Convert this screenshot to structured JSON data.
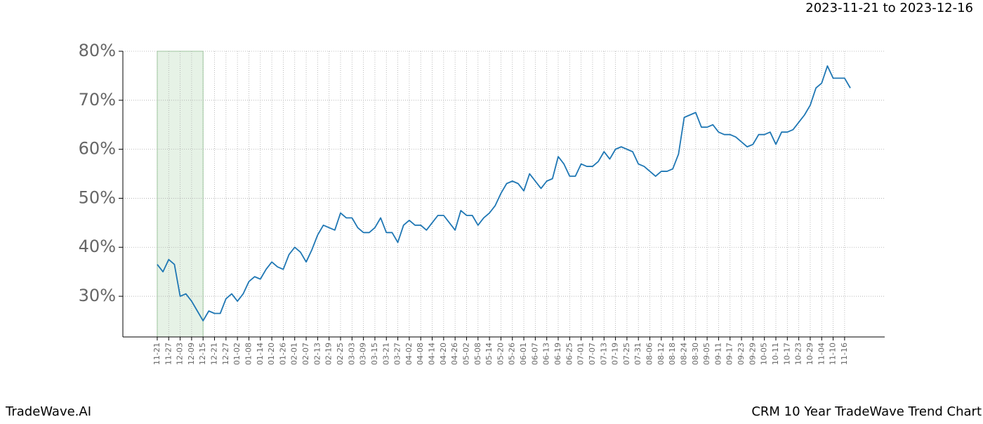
{
  "chart_data": {
    "type": "line",
    "date_range": "2023-11-21 to 2023-12-16",
    "footer_left": "TradeWave.AI",
    "footer_right": "CRM 10 Year TradeWave Trend Chart",
    "categories": [
      "11-21",
      null,
      "11-27",
      null,
      "12-03",
      null,
      "12-09",
      null,
      "12-15",
      null,
      "12-21",
      null,
      "12-27",
      null,
      "01-02",
      null,
      "01-08",
      null,
      "01-14",
      null,
      "01-20",
      null,
      "01-26",
      null,
      "02-01",
      null,
      "02-07",
      null,
      "02-13",
      null,
      "02-19",
      null,
      "02-25",
      null,
      "03-03",
      null,
      "03-09",
      null,
      "03-15",
      null,
      "03-21",
      null,
      "03-27",
      null,
      "04-02",
      null,
      "04-08",
      null,
      "04-14",
      null,
      "04-20",
      null,
      "04-26",
      null,
      "05-02",
      null,
      "05-08",
      null,
      "05-14",
      null,
      "05-20",
      null,
      "05-26",
      null,
      "06-01",
      null,
      "06-07",
      null,
      "06-13",
      null,
      "06-19",
      null,
      "06-25",
      null,
      "07-01",
      null,
      "07-07",
      null,
      "07-13",
      null,
      "07-19",
      null,
      "07-25",
      null,
      "07-31",
      null,
      "08-06",
      null,
      "08-12",
      null,
      "08-18",
      null,
      "08-24",
      null,
      "08-30",
      null,
      "09-05",
      null,
      "09-11",
      null,
      "09-17",
      null,
      "09-23",
      null,
      "09-29",
      null,
      "10-05",
      null,
      "10-11",
      null,
      "10-17",
      null,
      "10-23",
      null,
      "10-29",
      null,
      "11-04",
      null,
      "11-10",
      null,
      "11-16",
      null
    ],
    "series": [
      {
        "color": "#1f77b4",
        "values": [
          36.5,
          35,
          37.5,
          36.5,
          30,
          30.5,
          29,
          27,
          25,
          27,
          26.5,
          26.5,
          29.5,
          30.5,
          29,
          30.5,
          33,
          34,
          33.5,
          35.5,
          37,
          36,
          35.5,
          38.5,
          40,
          39,
          37,
          39.5,
          42.5,
          44.5,
          44,
          43.5,
          47,
          46,
          46,
          44,
          43,
          43,
          44,
          46,
          43,
          43,
          41,
          44.5,
          45.5,
          44.5,
          44.5,
          43.5,
          45,
          46.5,
          46.5,
          45,
          43.5,
          47.5,
          46.5,
          46.5,
          44.5,
          46,
          47,
          48.5,
          51,
          53,
          53.5,
          53,
          51.5,
          55,
          53.5,
          52,
          53.5,
          54,
          58.5,
          57,
          54.5,
          54.5,
          57,
          56.5,
          56.5,
          57.5,
          59.5,
          58,
          60,
          60.5,
          60,
          59.5,
          57,
          56.5,
          55.5,
          54.5,
          55.5,
          55.5,
          56,
          59,
          66.5,
          67,
          67.5,
          64.5,
          64.5,
          65,
          63.5,
          63,
          63,
          62.5,
          61.5,
          60.5,
          61,
          63,
          63,
          63.5,
          61,
          63.5,
          63.5,
          64,
          65.5,
          67,
          69,
          72.5,
          73.5,
          77,
          74.5,
          74.5,
          74.5,
          72.5
        ]
      }
    ],
    "shaded_span": [
      "11-21",
      "12-15"
    ],
    "shade_color": "#e6f2e6",
    "ylim": [
      21.7,
      80
    ],
    "yticks": [
      {
        "value": 30,
        "label": "30%"
      },
      {
        "value": 40,
        "label": "40%"
      },
      {
        "value": 50,
        "label": "50%"
      },
      {
        "value": 60,
        "label": "60%"
      },
      {
        "value": 70,
        "label": "70%"
      },
      {
        "value": 80,
        "label": "80%"
      }
    ],
    "grid": true
  }
}
